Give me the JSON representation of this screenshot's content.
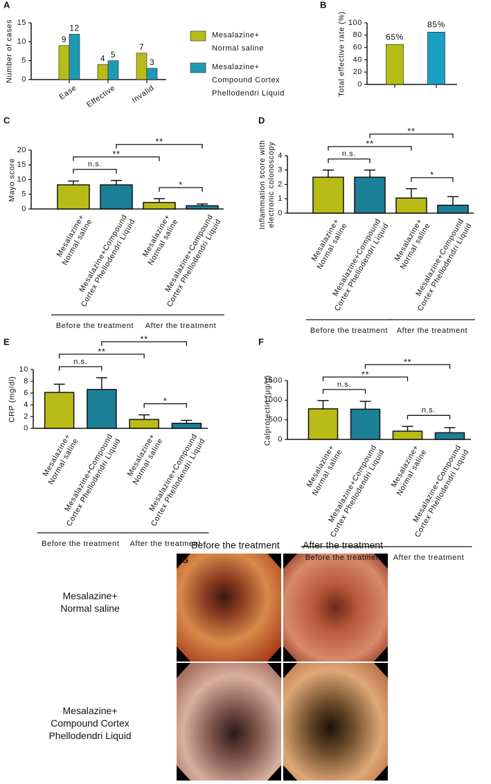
{
  "chart_data": [
    {
      "panel": "A",
      "type": "bar",
      "categories": [
        "Ease",
        "Effective",
        "Invalid"
      ],
      "series": [
        {
          "name": "Mesalazine+\nNormal saline",
          "color": "#b9bc16",
          "values": [
            9,
            4,
            7
          ]
        },
        {
          "name": "Mesalazine+\nCompound Cortex\nPhellodendri Liquid",
          "color": "#1f9ab5",
          "values": [
            12,
            5,
            3
          ]
        }
      ],
      "ylabel": "Number of cases",
      "ylim": [
        0,
        15
      ],
      "yticks": [
        0,
        5,
        10,
        15
      ]
    },
    {
      "panel": "B",
      "type": "bar",
      "categories": [
        null,
        null
      ],
      "values": [
        65,
        85
      ],
      "value_labels": [
        "65%",
        "85%"
      ],
      "colors": [
        "#b9bc16",
        "#1a9fc4"
      ],
      "ylabel": "Total effective rate (%)",
      "ylim": [
        0,
        100
      ],
      "yticks": [
        0,
        20,
        40,
        60,
        80,
        100
      ]
    },
    {
      "panel": "C",
      "type": "bar",
      "categories": [
        "Mesalazine+\nNormal saline",
        "Mesalazine+Compound\nCortex Phellodendri Liquid",
        "Mesalazine+\nNormal saline",
        "Mesalazine+Compound\nCortex Phellodendri Liquid"
      ],
      "values": [
        8.2,
        8.2,
        2.2,
        1.1
      ],
      "errors": [
        1.3,
        1.5,
        1.3,
        0.6
      ],
      "colors": [
        "#b9bc16",
        "#1b7f97",
        "#b9bc16",
        "#1b7f97"
      ],
      "ylabel": "Mayo score",
      "ylim": [
        0,
        20
      ],
      "yticks": [
        0,
        5,
        10,
        15,
        20
      ],
      "groups": [
        {
          "label": "Before the treatment",
          "categories": [
            0,
            1
          ]
        },
        {
          "label": "After the treatment",
          "categories": [
            2,
            3
          ]
        }
      ],
      "annotations": [
        {
          "between": [
            0,
            1
          ],
          "label": "n.s."
        },
        {
          "between": [
            0,
            2
          ],
          "label": "**"
        },
        {
          "between": [
            1,
            3
          ],
          "label": "**"
        },
        {
          "between": [
            2,
            3
          ],
          "label": "*"
        }
      ]
    },
    {
      "panel": "D",
      "type": "bar",
      "categories": [
        "Mesalazine+\nNormal saline",
        "Mesalazine+Compound\nCortex Phellodendri Liquid",
        "Mesalazine+\nNormal saline",
        "Mesalazine+Compound\nCortex Phellodendri Liquid"
      ],
      "values": [
        2.5,
        2.5,
        1.05,
        0.55
      ],
      "errors": [
        0.5,
        0.5,
        0.65,
        0.6
      ],
      "colors": [
        "#b9bc16",
        "#1b7f97",
        "#b9bc16",
        "#1b7f97"
      ],
      "ylabel": "Inflammation score with\nelectronic colonoscopy",
      "ylim": [
        0,
        4
      ],
      "yticks": [
        0,
        1,
        2,
        3,
        4
      ],
      "groups": [
        {
          "label": "Before the treatment",
          "categories": [
            0,
            1
          ]
        },
        {
          "label": "After the treatment",
          "categories": [
            2,
            3
          ]
        }
      ],
      "annotations": [
        {
          "between": [
            0,
            1
          ],
          "label": "n.s."
        },
        {
          "between": [
            0,
            2
          ],
          "label": "**"
        },
        {
          "between": [
            1,
            3
          ],
          "label": "**"
        },
        {
          "between": [
            2,
            3
          ],
          "label": "*"
        }
      ]
    },
    {
      "panel": "E",
      "type": "bar",
      "categories": [
        "Mesalazine+\nNormal saline",
        "Mesalazine+Compound\nCortex Phellodendri Liquid",
        "Mesalazine+\nNormal saline",
        "Mesalazine+Compound\nCortex Phellodendri Liquid"
      ],
      "values": [
        6.1,
        6.6,
        1.5,
        0.85
      ],
      "errors": [
        1.4,
        2.0,
        0.8,
        0.5
      ],
      "colors": [
        "#b9bc16",
        "#1b7f97",
        "#b9bc16",
        "#1b7f97"
      ],
      "ylabel": "CRP (mg/dl)",
      "ylim": [
        0,
        10
      ],
      "yticks": [
        0,
        2,
        4,
        6,
        8,
        10
      ],
      "groups": [
        {
          "label": "Before the treatment",
          "categories": [
            0,
            1
          ]
        },
        {
          "label": "After the treatment",
          "categories": [
            2,
            3
          ]
        }
      ],
      "annotations": [
        {
          "between": [
            0,
            1
          ],
          "label": "n.s."
        },
        {
          "between": [
            0,
            2
          ],
          "label": "**"
        },
        {
          "between": [
            1,
            3
          ],
          "label": "**"
        },
        {
          "between": [
            2,
            3
          ],
          "label": "*"
        }
      ]
    },
    {
      "panel": "F",
      "type": "bar",
      "categories": [
        "Mesalazine+\nNormal saline",
        "Mesalazine+Compound\nCortex Phellodendri Liquid",
        "Mesalazine+\nNormal saline",
        "Mesalazine+Compound\nCortex Phellodendri Liquid"
      ],
      "values": [
        780,
        770,
        210,
        170
      ],
      "errors": [
        210,
        200,
        120,
        130
      ],
      "colors": [
        "#b9bc16",
        "#1b7f97",
        "#b9bc16",
        "#1b7f97"
      ],
      "ylabel": "Calprotectin (μg/g)",
      "ylim": [
        0,
        1500
      ],
      "yticks": [
        0,
        500,
        1000,
        1500
      ],
      "groups": [
        {
          "label": "Before the treatment",
          "categories": [
            0,
            1
          ]
        },
        {
          "label": "After the treatment",
          "categories": [
            2,
            3
          ]
        }
      ],
      "annotations": [
        {
          "between": [
            0,
            1
          ],
          "label": "n.s."
        },
        {
          "between": [
            0,
            2
          ],
          "label": "**"
        },
        {
          "between": [
            1,
            3
          ],
          "label": "**"
        },
        {
          "between": [
            2,
            3
          ],
          "label": "n.s."
        }
      ]
    }
  ],
  "image_panel": {
    "panel": "G",
    "columns": [
      "Before the treatment",
      "After the treatment"
    ],
    "rows": [
      "Mesalazine+\nNormal saline",
      "Mesalazine+\nCompound Cortex\nPhellodendri Liquid"
    ]
  }
}
